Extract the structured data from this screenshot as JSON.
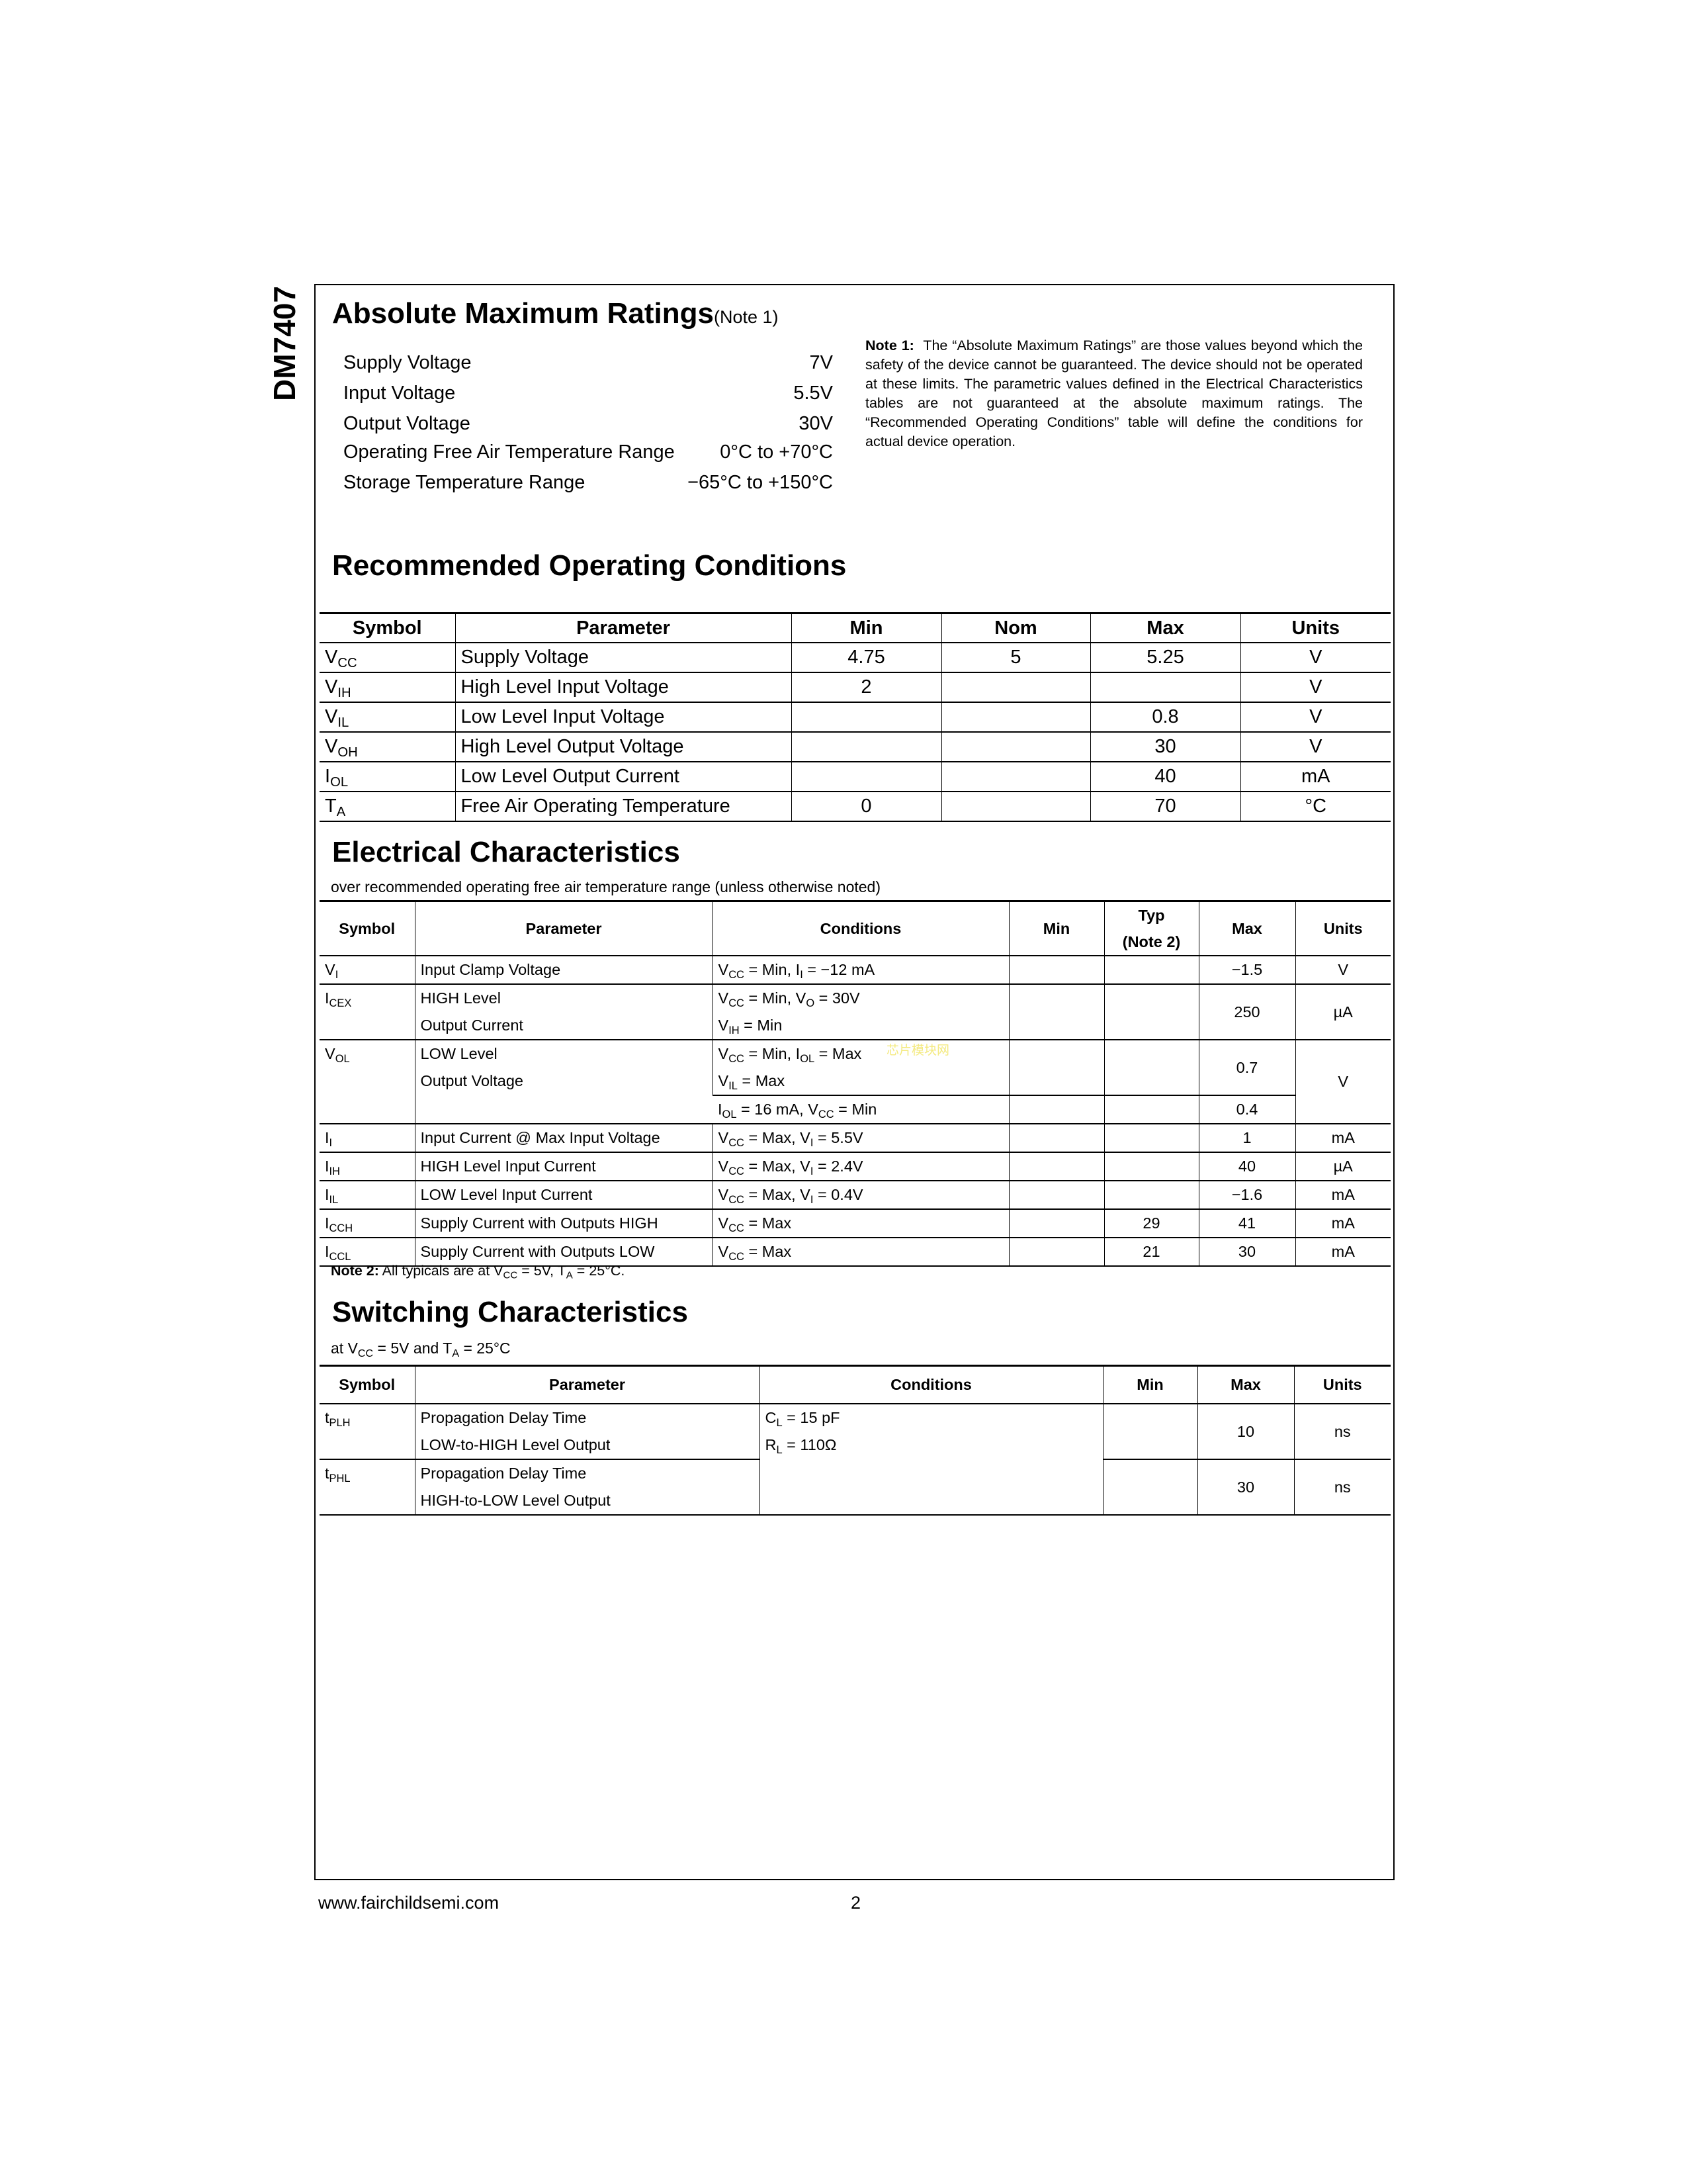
{
  "side_title": "DM7407",
  "amr": {
    "title": "Absolute Maximum Ratings",
    "note_ref": "(Note 1)",
    "rows": [
      {
        "label": "Supply Voltage",
        "value": "7V"
      },
      {
        "label": "Input Voltage",
        "value": "5.5V"
      },
      {
        "label": "Output Voltage",
        "value": "30V"
      },
      {
        "label": "Operating Free Air Temperature Range",
        "value": "0°C to +70°C"
      },
      {
        "label": "Storage Temperature Range",
        "value": "−65°C to +150°C"
      }
    ],
    "note1_label": "Note 1:",
    "note1_text": "The “Absolute Maximum Ratings” are those values beyond which the safety of the device cannot be guaranteed. The device should not be operated at these limits. The parametric values defined in the Electrical Characteristics tables are not guaranteed at the absolute maximum ratings. The “Recommended Operating Conditions” table will define the conditions for actual device operation."
  },
  "roc": {
    "title": "Recommended Operating Conditions",
    "headers": [
      "Symbol",
      "Parameter",
      "Min",
      "Nom",
      "Max",
      "Units"
    ],
    "rows": [
      [
        "V_{CC}",
        "Supply Voltage",
        "4.75",
        "5",
        "5.25",
        "V"
      ],
      [
        "V_{IH}",
        "High Level Input Voltage",
        "2",
        "",
        "",
        "V"
      ],
      [
        "V_{IL}",
        "Low Level Input Voltage",
        "",
        "",
        "0.8",
        "V"
      ],
      [
        "V_{OH}",
        "High Level Output Voltage",
        "",
        "",
        "30",
        "V"
      ],
      [
        "I_{OL}",
        "Low Level Output Current",
        "",
        "",
        "40",
        "mA"
      ],
      [
        "T_{A}",
        "Free Air Operating Temperature",
        "0",
        "",
        "70",
        "°C"
      ]
    ]
  },
  "ec": {
    "title": "Electrical Characteristics",
    "subtitle": "over recommended operating free air temperature range (unless otherwise noted)",
    "headers": [
      "Symbol",
      "Parameter",
      "Conditions",
      "Min",
      "Typ",
      "(Note 2)",
      "Max",
      "Units"
    ],
    "vi": {
      "sym": "V_{I}",
      "param": "Input Clamp Voltage",
      "cond": "V_{CC} = Min, I_{I} = −12 mA",
      "max": "−1.5",
      "units": "V"
    },
    "icex": {
      "sym": "I_{CEX}",
      "param": [
        "HIGH Level",
        "Output Current"
      ],
      "cond": [
        "V_{CC} = Min, V_{O} = 30V",
        "V_{IH} = Min"
      ],
      "max": "250",
      "units": "µA"
    },
    "vol": {
      "sym": "V_{OL}",
      "param": [
        "LOW Level",
        "Output Voltage"
      ],
      "cond": [
        "V_{CC} = Min, I_{OL} = Max",
        "V_{IL} = Max"
      ],
      "max": "0.7",
      "cond2": "I_{OL} = 16 mA, V_{CC} = Min",
      "max2": "0.4",
      "units": "V"
    },
    "rows": [
      [
        "I_{I}",
        "Input Current @ Max Input Voltage",
        "V_{CC} = Max, V_{I} = 5.5V",
        "",
        "",
        "1",
        "mA"
      ],
      [
        "I_{IH}",
        "HIGH Level Input Current",
        "V_{CC} = Max, V_{I} = 2.4V",
        "",
        "",
        "40",
        "µA"
      ],
      [
        "I_{IL}",
        "LOW Level Input Current",
        "V_{CC} = Max, V_{I} = 0.4V",
        "",
        "",
        "−1.6",
        "mA"
      ],
      [
        "I_{CCH}",
        "Supply Current with Outputs HIGH",
        "V_{CC} = Max",
        "",
        "29",
        "41",
        "mA"
      ],
      [
        "I_{CCL}",
        "Supply Current with Outputs LOW",
        "V_{CC} = Max",
        "",
        "21",
        "30",
        "mA"
      ]
    ],
    "note2_label": "Note 2:",
    "note2_text": "All typicals are at V_{CC} = 5V, T_{A} = 25°C."
  },
  "sc": {
    "title": "Switching Characteristics",
    "subtitle": "at V_{CC} = 5V and T_{A} = 25°C",
    "headers": [
      "Symbol",
      "Parameter",
      "Conditions",
      "Min",
      "Max",
      "Units"
    ],
    "conditions": [
      "C_{L} = 15 pF",
      "R_{L} = 110Ω"
    ],
    "rows": [
      {
        "sym": "t_{PLH}",
        "param": [
          "Propagation Delay Time",
          "LOW-to-HIGH Level Output"
        ],
        "min": "",
        "max": "10",
        "units": "ns"
      },
      {
        "sym": "t_{PHL}",
        "param": [
          "Propagation Delay Time",
          "HIGH-to-LOW Level Output"
        ],
        "min": "",
        "max": "30",
        "units": "ns"
      }
    ]
  },
  "watermark": "芯片模块网",
  "footer": {
    "url": "www.fairchildsemi.com",
    "page": "2"
  }
}
